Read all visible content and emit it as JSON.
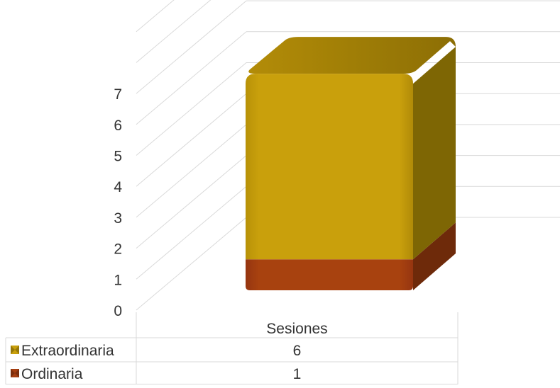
{
  "chart_data": {
    "type": "bar",
    "stacked": true,
    "three_d": true,
    "categories": [
      "Sesiones"
    ],
    "series": [
      {
        "name": "Ordinaria",
        "values": [
          1
        ],
        "color": "#A53E10"
      },
      {
        "name": "Extraordinaria",
        "values": [
          6
        ],
        "color": "#C9A00C"
      }
    ],
    "yticks": [
      "0",
      "1",
      "2",
      "3",
      "4",
      "5",
      "6",
      "7"
    ],
    "ylim": [
      0,
      7
    ],
    "grid": true,
    "legend": "data-table-bottom",
    "data_table": {
      "header": "Sesiones",
      "rows": [
        {
          "label": "Extraordinaria",
          "value": "6",
          "color": "#C9A00C"
        },
        {
          "label": "Ordinaria",
          "value": "1",
          "color": "#A53E10"
        }
      ]
    }
  }
}
